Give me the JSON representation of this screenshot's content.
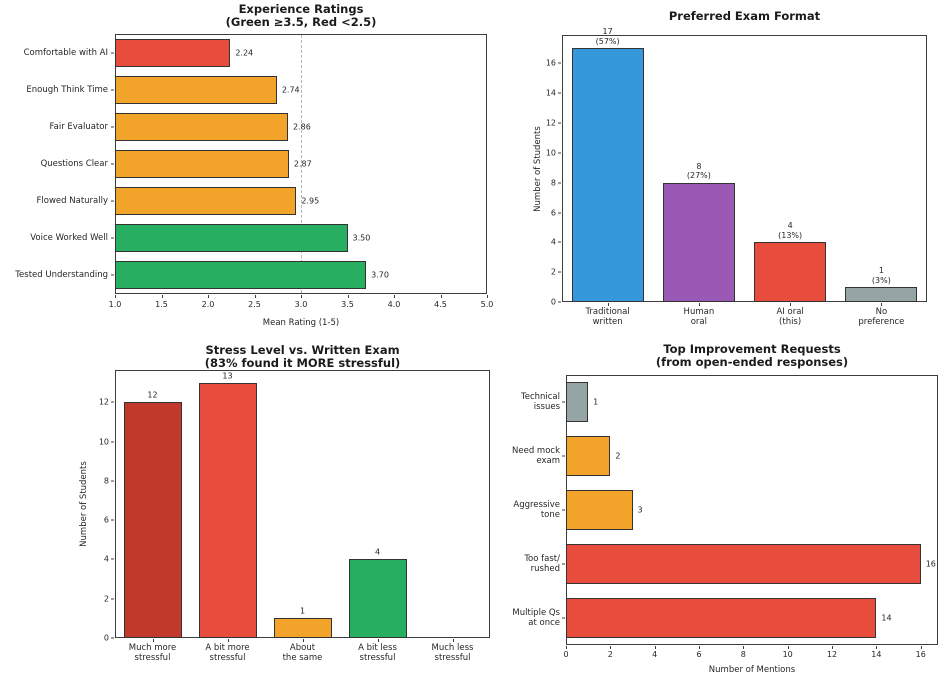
{
  "figure": {
    "background": "#ffffff",
    "axis_color": "#3d3d3d",
    "bar_edge_color": "#333333",
    "text_color": "#262626"
  },
  "chart_data": [
    {
      "id": "experience-ratings",
      "type": "bar",
      "orientation": "horizontal",
      "title": "Experience Ratings",
      "subtitle": "(Green ≥3.5, Red <2.5)",
      "xlabel": "Mean Rating (1-5)",
      "ylabel": "",
      "xlim": [
        1.0,
        5.0
      ],
      "xticks": [
        "1.0",
        "1.5",
        "2.0",
        "2.5",
        "3.0",
        "3.5",
        "4.0",
        "4.5",
        "5.0"
      ],
      "grid": false,
      "reference_line": {
        "value": 3.0,
        "style": "dashed",
        "color": "#b6b6b6"
      },
      "categories": [
        "Comfortable with AI",
        "Enough Think Time",
        "Fair Evaluator",
        "Questions Clear",
        "Flowed Naturally",
        "Voice Worked Well",
        "Tested Understanding"
      ],
      "values": [
        2.24,
        2.74,
        2.86,
        2.87,
        2.95,
        3.5,
        3.7
      ],
      "value_labels": [
        "2.24",
        "2.74",
        "2.86",
        "2.87",
        "2.95",
        "3.50",
        "3.70"
      ],
      "bar_colors": [
        "#e74c3c",
        "#f2a42a",
        "#f2a42a",
        "#f2a42a",
        "#f2a42a",
        "#27ae60",
        "#27ae60"
      ]
    },
    {
      "id": "preferred-exam-format",
      "type": "bar",
      "orientation": "vertical",
      "title": "Preferred Exam Format",
      "subtitle": "",
      "xlabel": "",
      "ylabel": "Number of Students",
      "ylim": [
        0,
        17.9
      ],
      "yticks": [
        0,
        2,
        4,
        6,
        8,
        10,
        12,
        14,
        16
      ],
      "grid": false,
      "categories": [
        "Traditional\nwritten",
        "Human\noral",
        "AI oral\n(this)",
        "No\npreference"
      ],
      "values": [
        17,
        8,
        4,
        1
      ],
      "value_labels": [
        "17\n(57%)",
        "8\n(27%)",
        "4\n(13%)",
        "1\n(3%)"
      ],
      "bar_colors": [
        "#3498db",
        "#9b59b6",
        "#e74c3c",
        "#95a5a6"
      ]
    },
    {
      "id": "stress-level-vs-written-exam",
      "type": "bar",
      "orientation": "vertical",
      "title": "Stress Level vs. Written Exam",
      "subtitle": "(83% found it MORE stressful)",
      "xlabel": "",
      "ylabel": "Number of Students",
      "ylim": [
        0,
        13.65
      ],
      "yticks": [
        0,
        2,
        4,
        6,
        8,
        10,
        12
      ],
      "grid": false,
      "categories": [
        "Much more\nstressful",
        "A bit more\nstressful",
        "About\nthe same",
        "A bit less\nstressful",
        "Much less\nstressful"
      ],
      "values": [
        12,
        13,
        1,
        4,
        0
      ],
      "value_labels": [
        "12",
        "13",
        "1",
        "4",
        ""
      ],
      "bar_colors": [
        "#c0392b",
        "#e74c3c",
        "#f2a42a",
        "#27ae60",
        "#27ae60"
      ]
    },
    {
      "id": "top-improvement-requests",
      "type": "bar",
      "orientation": "horizontal",
      "title": "Top Improvement Requests",
      "subtitle": "(from open-ended responses)",
      "xlabel": "Number of Mentions",
      "ylabel": "",
      "xlim": [
        0,
        16.78
      ],
      "xticks": [
        0,
        2,
        4,
        6,
        8,
        10,
        12,
        14,
        16
      ],
      "grid": false,
      "categories": [
        "Technical\nissues",
        "Need mock\nexam",
        "Aggressive\ntone",
        "Too fast/\nrushed",
        "Multiple Qs\nat once"
      ],
      "values": [
        1,
        2,
        3,
        16,
        14
      ],
      "value_labels": [
        "1",
        "2",
        "3",
        "16",
        "14"
      ],
      "bar_colors": [
        "#95a5a6",
        "#f2a42a",
        "#f2a42a",
        "#e74c3c",
        "#e74c3c"
      ]
    }
  ]
}
